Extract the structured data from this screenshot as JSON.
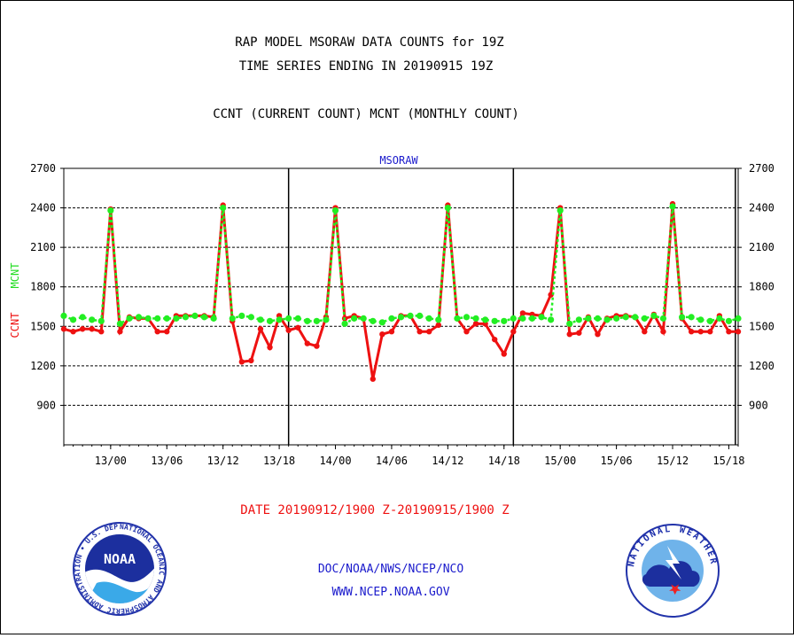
{
  "header": {
    "title_line1": "RAP MODEL MSORAW DATA COUNTS for 19Z",
    "title_line2": "TIME SERIES ENDING IN 20190915 19Z",
    "subtitle": "CCNT (CURRENT COUNT) MCNT (MONTHLY COUNT)"
  },
  "footer": {
    "date_range": "DATE 20190912/1900 Z-20190915/1900 Z",
    "org_line": "DOC/NOAA/NWS/NCEP/NCO",
    "url_line": "WWW.NCEP.NOAA.GOV"
  },
  "logos": {
    "noaa_text": "NOAA",
    "noaa_ring_text": "NATIONAL OCEANIC AND ATMOSPHERIC ADMINISTRATION • U.S. DEPARTMENT OF COMMERCE •",
    "nws_ring_text": "NATIONAL WEATHER SERVICE"
  },
  "colors": {
    "ccnt": "#ee1111",
    "mcnt": "#22ee22",
    "text": "#000000",
    "blue_text": "#1a1acc",
    "red_text": "#ee1111"
  },
  "chart_data": {
    "type": "line",
    "title": "MSORAW",
    "ylabel_left": [
      "CCNT",
      "MCNT"
    ],
    "ylim": [
      600,
      2700
    ],
    "yticks": [
      900,
      1200,
      1500,
      1800,
      2100,
      2400,
      2700
    ],
    "x_range_hours": [
      0,
      72
    ],
    "xtick_labels": [
      "13/00",
      "13/06",
      "13/12",
      "13/18",
      "14/00",
      "14/06",
      "14/12",
      "14/18",
      "15/00",
      "15/06",
      "15/12",
      "15/18"
    ],
    "grid": "horizontal dashed",
    "series": [
      {
        "name": "CCNT",
        "values": [
          1480,
          1460,
          1480,
          1480,
          1460,
          2390,
          1460,
          1570,
          1560,
          1560,
          1460,
          1460,
          1580,
          1580,
          1580,
          1580,
          1570,
          2420,
          1540,
          1230,
          1240,
          1480,
          1340,
          1580,
          1470,
          1490,
          1370,
          1350,
          1570,
          2400,
          1560,
          1580,
          1560,
          1100,
          1440,
          1460,
          1580,
          1580,
          1460,
          1460,
          1510,
          2420,
          1560,
          1460,
          1520,
          1520,
          1400,
          1290,
          1460,
          1600,
          1590,
          1580,
          1740,
          2400,
          1440,
          1450,
          1570,
          1440,
          1560,
          1580,
          1580,
          1570,
          1460,
          1590,
          1460,
          2430,
          1560,
          1460,
          1460,
          1460,
          1580,
          1460,
          1460
        ]
      },
      {
        "name": "MCNT",
        "values": [
          1580,
          1550,
          1570,
          1550,
          1540,
          2380,
          1520,
          1560,
          1570,
          1560,
          1560,
          1560,
          1560,
          1570,
          1580,
          1570,
          1560,
          2400,
          1560,
          1580,
          1570,
          1550,
          1540,
          1550,
          1560,
          1560,
          1540,
          1540,
          1550,
          2380,
          1520,
          1560,
          1560,
          1540,
          1530,
          1560,
          1570,
          1580,
          1580,
          1560,
          1550,
          2400,
          1560,
          1570,
          1560,
          1550,
          1540,
          1540,
          1560,
          1560,
          1560,
          1570,
          1550,
          2380,
          1520,
          1550,
          1560,
          1560,
          1550,
          1560,
          1570,
          1570,
          1560,
          1580,
          1560,
          2410,
          1570,
          1570,
          1550,
          1540,
          1560,
          1540,
          1560
        ]
      }
    ]
  }
}
